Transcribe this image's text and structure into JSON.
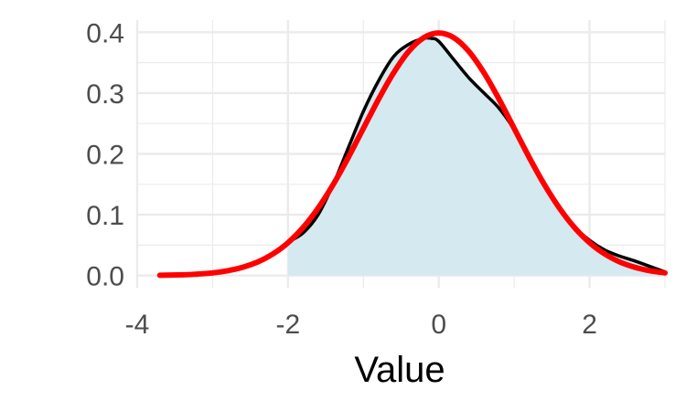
{
  "chart_data": {
    "type": "area",
    "title": "",
    "xlabel": "Value",
    "ylabel": "",
    "xlim": [
      -4,
      3
    ],
    "ylim": [
      0,
      0.4
    ],
    "x_ticks": [
      -4,
      -2,
      0,
      2
    ],
    "y_ticks": [
      0.0,
      0.1,
      0.2,
      0.3,
      0.4
    ],
    "x_tick_labels": [
      "-4",
      "-2",
      "0",
      "2"
    ],
    "y_tick_labels": [
      "0.0",
      "0.1",
      "0.2",
      "0.3",
      "0.4"
    ],
    "x_minor_grid": [
      -3,
      -1,
      1,
      3
    ],
    "y_minor_grid": [
      0.05,
      0.15,
      0.25,
      0.35
    ],
    "grid": true,
    "legend": "none",
    "colors": {
      "fill": "#d5e9f0",
      "empirical_line": "#000000",
      "normal_line": "#ff0000",
      "grid": "#ebebeb"
    },
    "series": [
      {
        "kind": "area-line",
        "x": [
          -2.0,
          -1.8,
          -1.6,
          -1.4,
          -1.2,
          -1.0,
          -0.8,
          -0.6,
          -0.4,
          -0.2,
          -0.1,
          0.0,
          0.2,
          0.4,
          0.6,
          0.8,
          1.0,
          1.2,
          1.4,
          1.6,
          1.8,
          2.0,
          2.2,
          2.4,
          2.6,
          2.8,
          3.0
        ],
        "values": [
          0.055,
          0.07,
          0.1,
          0.15,
          0.21,
          0.27,
          0.32,
          0.36,
          0.38,
          0.39,
          0.39,
          0.385,
          0.355,
          0.325,
          0.3,
          0.275,
          0.24,
          0.195,
          0.15,
          0.11,
          0.08,
          0.058,
          0.042,
          0.032,
          0.024,
          0.015,
          0.006
        ]
      },
      {
        "kind": "line",
        "x": [
          -3.7,
          -3.4,
          -3.2,
          -3.0,
          -2.8,
          -2.6,
          -2.4,
          -2.2,
          -2.0,
          -1.8,
          -1.6,
          -1.4,
          -1.2,
          -1.0,
          -0.8,
          -0.6,
          -0.4,
          -0.2,
          0.0,
          0.2,
          0.4,
          0.6,
          0.8,
          1.0,
          1.2,
          1.4,
          1.6,
          1.8,
          2.0,
          2.2,
          2.4,
          2.6,
          2.8,
          3.0
        ],
        "values": [
          0.0004,
          0.0012,
          0.0024,
          0.0044,
          0.0079,
          0.0136,
          0.0224,
          0.0355,
          0.054,
          0.079,
          0.1109,
          0.1497,
          0.1942,
          0.242,
          0.2897,
          0.3332,
          0.3683,
          0.391,
          0.3989,
          0.391,
          0.3683,
          0.3332,
          0.2897,
          0.242,
          0.1942,
          0.1497,
          0.1109,
          0.079,
          0.054,
          0.0355,
          0.0224,
          0.0136,
          0.0079,
          0.0044
        ]
      }
    ]
  }
}
